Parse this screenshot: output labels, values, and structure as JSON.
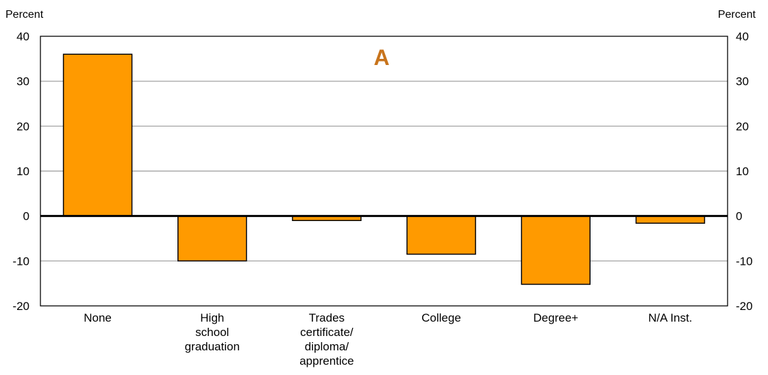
{
  "chart_data": {
    "type": "bar",
    "panel_label": "A",
    "ylabel_left": "Percent",
    "ylabel_right": "Percent",
    "ylim": [
      -20,
      40
    ],
    "yticks": [
      40,
      30,
      20,
      10,
      0,
      -10,
      -20
    ],
    "grid": true,
    "categories": [
      [
        "None"
      ],
      [
        "High",
        "school",
        "graduation"
      ],
      [
        "Trades",
        "certificate/",
        "diploma/",
        "apprentice"
      ],
      [
        "College"
      ],
      [
        "Degree+"
      ],
      [
        "N/A Inst."
      ]
    ],
    "values": [
      36,
      -10,
      -1,
      -8.5,
      -15.2,
      -1.6
    ]
  },
  "colors": {
    "bar_fill": "#FF9A00",
    "panel_label": "#C8741C",
    "grid": "#999999",
    "axis": "#000000"
  }
}
